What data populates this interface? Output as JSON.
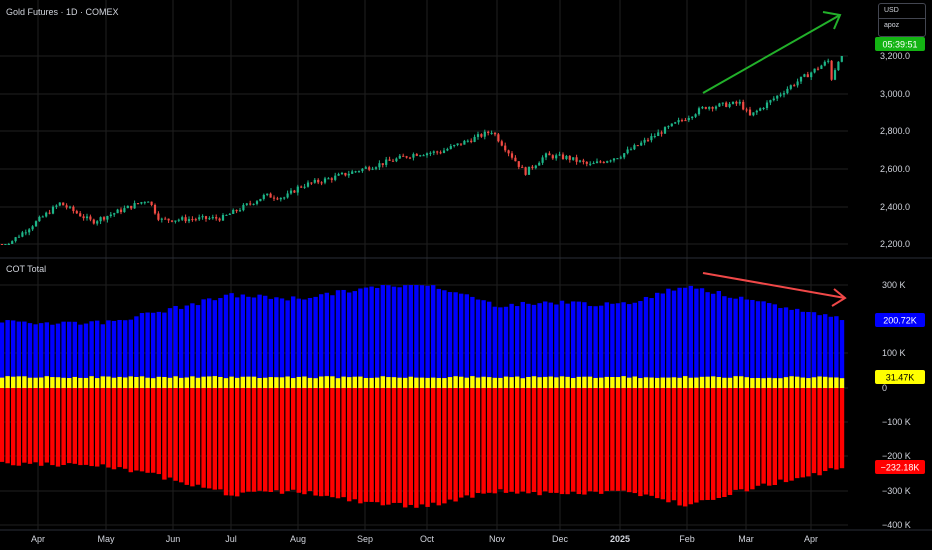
{
  "header": {
    "symbol_title": "Gold Futures · 1D · COMEX",
    "currency": "USD",
    "user": "apoz",
    "countdown": "05:39:51"
  },
  "chart_data": [
    {
      "type": "candlestick",
      "title": "Gold Futures · 1D · COMEX",
      "x_tick_labels": [
        "Apr",
        "May",
        "Jun",
        "Jul",
        "Aug",
        "Sep",
        "Oct",
        "Nov",
        "Dec",
        "2025",
        "Feb",
        "Mar",
        "Apr"
      ],
      "y_tick_labels": [
        "3,200.0",
        "3,000.0",
        "2,800.0",
        "2,600.0",
        "2,400.0",
        "2,200.0"
      ],
      "ylim": [
        2150,
        3320
      ],
      "price_path": [
        {
          "x": "Apr",
          "close": 2175
        },
        {
          "x": "Apr",
          "close": 2420
        },
        {
          "x": "May",
          "close": 2320
        },
        {
          "x": "May",
          "close": 2440
        },
        {
          "x": "Jun",
          "close": 2330
        },
        {
          "x": "Jul",
          "close": 2340
        },
        {
          "x": "Jul",
          "close": 2460
        },
        {
          "x": "Aug",
          "close": 2450
        },
        {
          "x": "Aug",
          "close": 2510
        },
        {
          "x": "Sep",
          "close": 2550
        },
        {
          "x": "Sep",
          "close": 2680
        },
        {
          "x": "Oct",
          "close": 2690
        },
        {
          "x": "Oct",
          "close": 2800
        },
        {
          "x": "Nov",
          "close": 2580
        },
        {
          "x": "Nov",
          "close": 2670
        },
        {
          "x": "Dec",
          "close": 2660
        },
        {
          "x": "Dec",
          "close": 2620
        },
        {
          "x": "2025",
          "close": 2670
        },
        {
          "x": "Feb",
          "close": 2930
        },
        {
          "x": "Feb",
          "close": 2950
        },
        {
          "x": "Mar",
          "close": 2880
        },
        {
          "x": "Mar",
          "close": 3040
        },
        {
          "x": "Apr",
          "close": 3180
        },
        {
          "x": "Apr",
          "close": 3000
        },
        {
          "x": "Apr",
          "close": 3280
        }
      ],
      "annotations": [
        {
          "type": "arrow",
          "color": "#22b02a",
          "direction": "up-right"
        }
      ]
    },
    {
      "type": "bar",
      "title": "COT Total",
      "y_tick_labels": [
        "300 K",
        "100 K",
        "0",
        "−100 K",
        "−200 K",
        "−300 K",
        "−400 K"
      ],
      "ylim": [
        -400000,
        300000
      ],
      "series": [
        {
          "color": "#0000ff",
          "last_label": "200.72K",
          "last": 200720,
          "path": [
            {
              "x": "Apr",
              "v": 190000
            },
            {
              "x": "May",
              "v": 190000
            },
            {
              "x": "Jun",
              "v": 230000
            },
            {
              "x": "Jul",
              "v": 270000
            },
            {
              "x": "Aug",
              "v": 260000
            },
            {
              "x": "Sep",
              "v": 290000
            },
            {
              "x": "Oct",
              "v": 305000
            },
            {
              "x": "Nov",
              "v": 240000
            },
            {
              "x": "Dec",
              "v": 250000
            },
            {
              "x": "2025",
              "v": 240000
            },
            {
              "x": "Feb",
              "v": 300000
            },
            {
              "x": "Mar",
              "v": 255000
            },
            {
              "x": "Apr",
              "v": 200720
            }
          ]
        },
        {
          "color": "#ffff00",
          "last_label": "31.47K",
          "last": 31470,
          "path": [
            {
              "x": "Apr",
              "v": 31000
            },
            {
              "x": "Apr",
              "v": 31470
            }
          ]
        },
        {
          "color": "#ff0000",
          "last_label": "−232.18K",
          "last": -232180,
          "path": [
            {
              "x": "Apr",
              "v": -220000
            },
            {
              "x": "May",
              "v": -230000
            },
            {
              "x": "Jun",
              "v": -265000
            },
            {
              "x": "Jul",
              "v": -310000
            },
            {
              "x": "Aug",
              "v": -300000
            },
            {
              "x": "Sep",
              "v": -335000
            },
            {
              "x": "Oct",
              "v": -345000
            },
            {
              "x": "Nov",
              "v": -300000
            },
            {
              "x": "Dec",
              "v": -310000
            },
            {
              "x": "2025",
              "v": -300000
            },
            {
              "x": "Feb",
              "v": -340000
            },
            {
              "x": "Mar",
              "v": -295000
            },
            {
              "x": "Apr",
              "v": -232180
            }
          ]
        }
      ],
      "annotations": [
        {
          "type": "arrow",
          "color": "#f04848",
          "direction": "down-right"
        }
      ]
    }
  ],
  "colors": {
    "background": "#000000",
    "grid": "#1f1f1f",
    "up": "#1db588",
    "down": "#ef4a43",
    "countdown_bg": "#13b413",
    "text": "#d1d4dc"
  }
}
